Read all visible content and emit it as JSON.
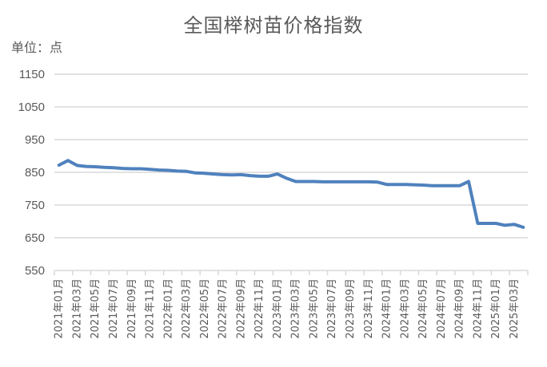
{
  "title": "全国榉树苗价格指数",
  "unit_label": "单位：点",
  "chart_data": {
    "type": "line",
    "title": "全国榉树苗价格指数",
    "xlabel": "",
    "ylabel": "单位：点",
    "ylim": [
      550,
      1150
    ],
    "yticks": [
      550,
      650,
      750,
      850,
      950,
      1050,
      1150
    ],
    "grid": true,
    "legend": null,
    "line_color": "#4f81bd",
    "grid_color": "#d9d9d9",
    "x": [
      "2021年01月",
      "2021年02月",
      "2021年03月",
      "2021年04月",
      "2021年05月",
      "2021年06月",
      "2021年07月",
      "2021年08月",
      "2021年09月",
      "2021年10月",
      "2021年11月",
      "2021年12月",
      "2022年01月",
      "2022年02月",
      "2022年03月",
      "2022年04月",
      "2022年05月",
      "2022年06月",
      "2022年07月",
      "2022年08月",
      "2022年09月",
      "2022年10月",
      "2022年11月",
      "2022年12月",
      "2023年01月",
      "2023年02月",
      "2023年03月",
      "2023年04月",
      "2023年05月",
      "2023年06月",
      "2023年07月",
      "2023年08月",
      "2023年09月",
      "2023年10月",
      "2023年11月",
      "2023年12月",
      "2024年01月",
      "2024年02月",
      "2024年03月",
      "2024年04月",
      "2024年05月",
      "2024年06月",
      "2024年07月",
      "2024年08月",
      "2024年09月",
      "2024年10月",
      "2024年11月",
      "2024年12月",
      "2025年01月",
      "2025年02月",
      "2025年03月",
      "2025年04月"
    ],
    "tick_labels": [
      "2021年01月",
      "2021年03月",
      "2021年05月",
      "2021年07月",
      "2021年09月",
      "2021年11月",
      "2022年01月",
      "2022年03月",
      "2022年05月",
      "2022年07月",
      "2022年09月",
      "2022年11月",
      "2023年01月",
      "2023年03月",
      "2023年05月",
      "2023年07月",
      "2023年09月",
      "2023年11月",
      "2024年01月",
      "2024年03月",
      "2024年05月",
      "2024年07月",
      "2024年09月",
      "2024年11月",
      "2025年01月",
      "2025年03月"
    ],
    "series": [
      {
        "name": "全国榉树苗价格指数",
        "values": [
          872,
          886,
          871,
          868,
          867,
          865,
          864,
          862,
          861,
          861,
          859,
          857,
          856,
          854,
          853,
          848,
          847,
          845,
          843,
          842,
          843,
          840,
          838,
          838,
          845,
          832,
          822,
          822,
          822,
          821,
          821,
          821,
          821,
          821,
          821,
          820,
          813,
          813,
          813,
          812,
          811,
          809,
          809,
          809,
          809,
          822,
          694,
          694,
          694,
          688,
          691,
          682
        ]
      }
    ]
  }
}
